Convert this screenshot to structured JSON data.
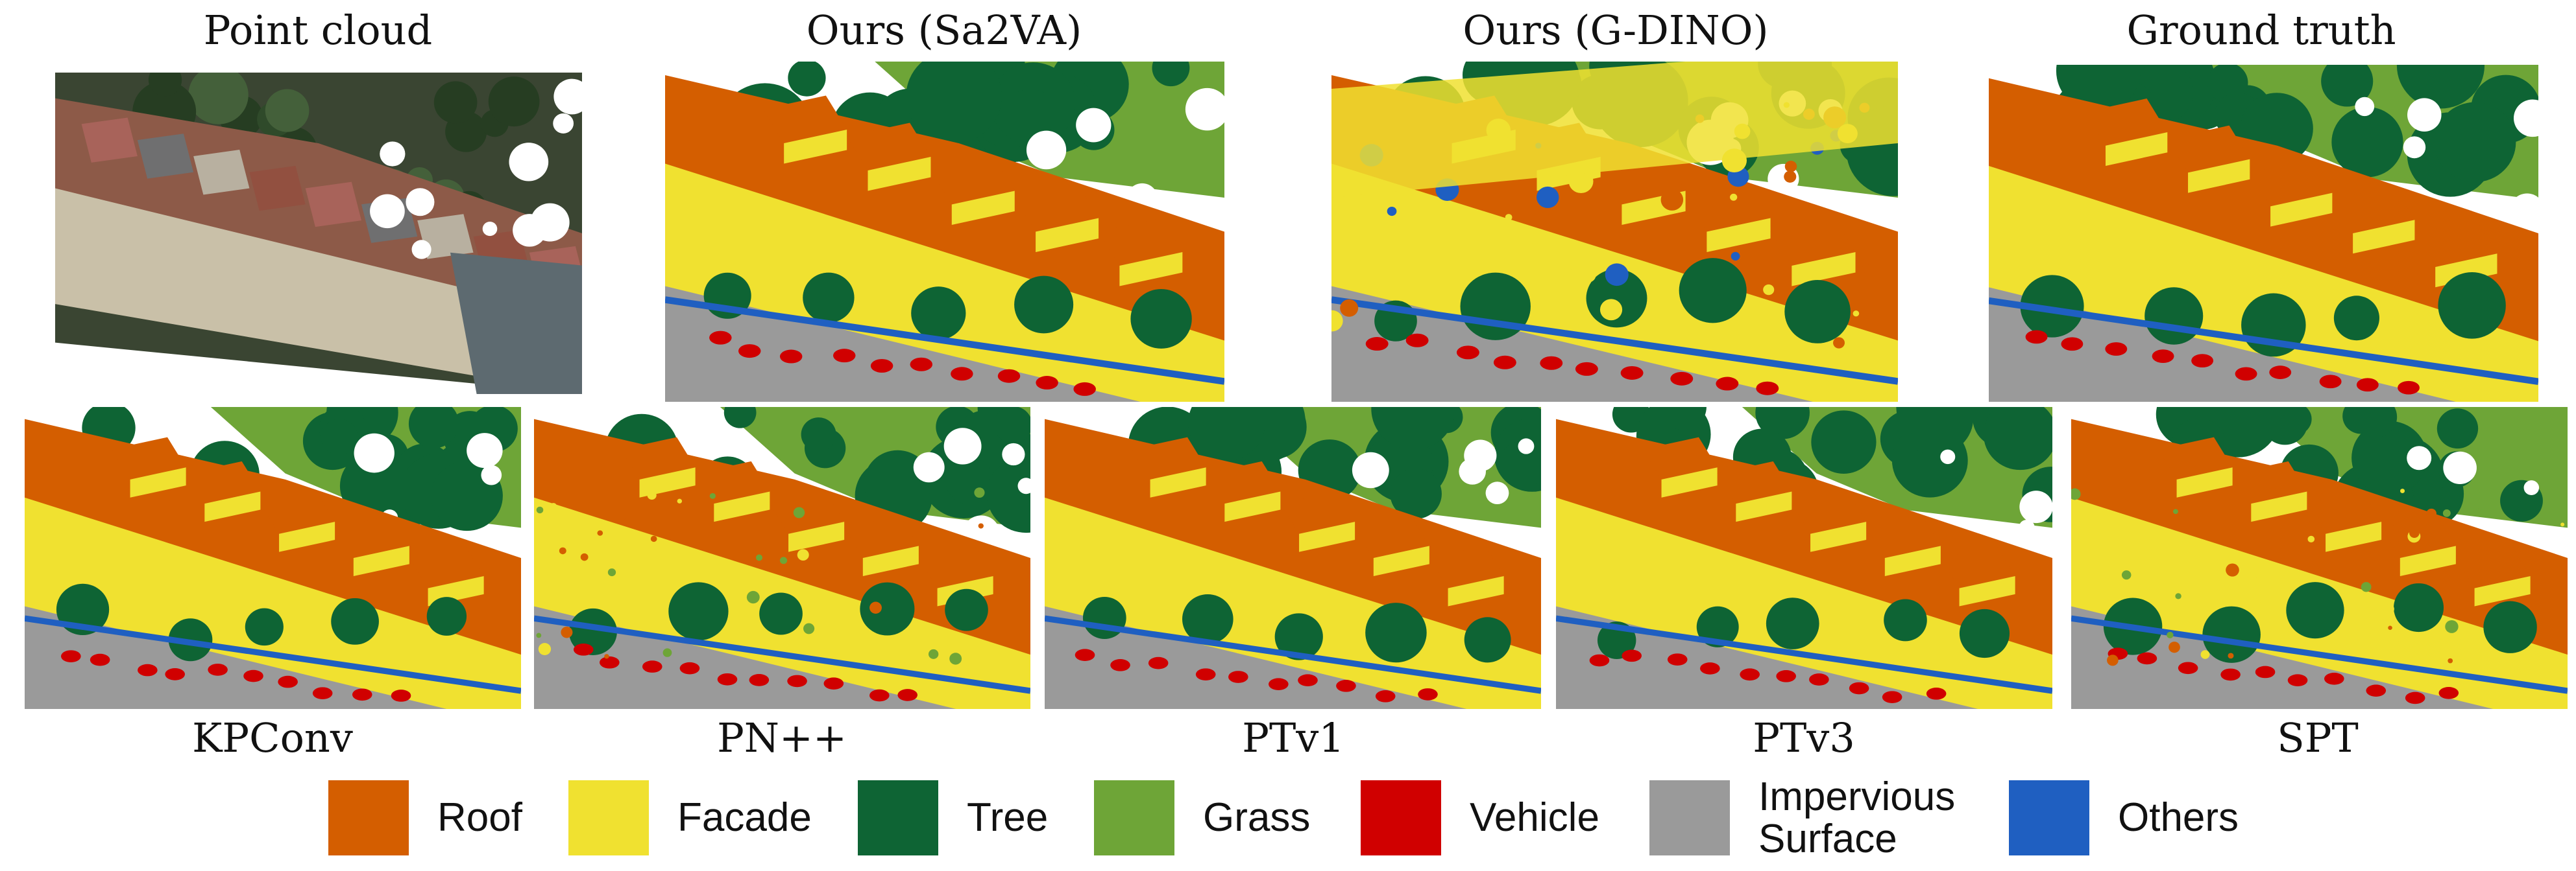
{
  "figure": {
    "top_row": [
      {
        "id": "point-cloud",
        "caption": "Point cloud"
      },
      {
        "id": "ours-sa2va",
        "caption": "Ours (Sa2VA)"
      },
      {
        "id": "ours-gdino",
        "caption": "Ours (G-DINO)"
      },
      {
        "id": "ground-truth",
        "caption": "Ground truth"
      }
    ],
    "bottom_row": [
      {
        "id": "kpconv",
        "caption": "KPConv"
      },
      {
        "id": "pnpp",
        "caption": "PN++"
      },
      {
        "id": "ptv1",
        "caption": "PTv1"
      },
      {
        "id": "ptv3",
        "caption": "PTv3"
      },
      {
        "id": "spt",
        "caption": "SPT"
      }
    ]
  },
  "legend": [
    {
      "label": "Roof",
      "color": "#D45E00"
    },
    {
      "label": "Facade",
      "color": "#F0E130"
    },
    {
      "label": "Tree",
      "color": "#0E6434"
    },
    {
      "label": "Grass",
      "color": "#6EA537"
    },
    {
      "label": "Vehicle",
      "color": "#D00000"
    },
    {
      "label": "Impervious\nSurface",
      "color": "#9A9A9A"
    },
    {
      "label": "Others",
      "color": "#1F5FC1"
    }
  ]
}
